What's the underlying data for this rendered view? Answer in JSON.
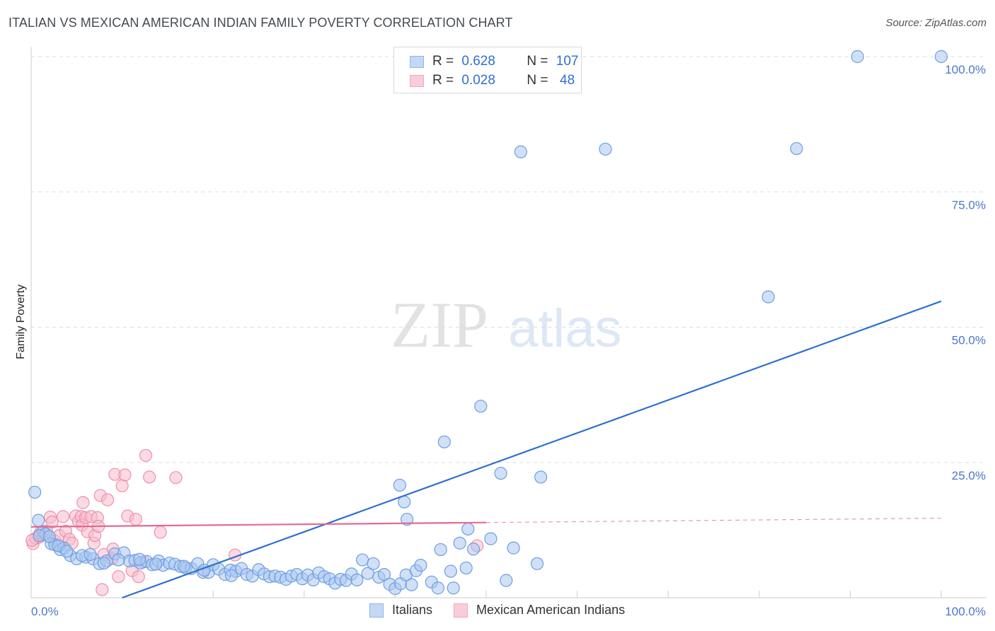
{
  "header": {
    "title": "ITALIAN VS MEXICAN AMERICAN INDIAN FAMILY POVERTY CORRELATION CHART",
    "source": "Source: ZipAtlas.com"
  },
  "watermark": {
    "zip": "ZIP",
    "atlas": "atlas"
  },
  "legend": {
    "rows": [
      {
        "r_label": "R = ",
        "r_value": "0.628",
        "n_label": "N = ",
        "n_value": "107",
        "color": "#8fb4ee"
      },
      {
        "r_label": "R = ",
        "r_value": "0.028",
        "n_label": "N = ",
        "n_value": " 48",
        "color": "#f3a6be"
      }
    ]
  },
  "colors": {
    "italians_fill": "#a9c6f0",
    "italians_stroke": "#6e9ee0",
    "italians_line": "#2c6fd0",
    "mexican_fill": "#f7bccc",
    "mexican_stroke": "#ee8fab",
    "mexican_line": "#e46a93",
    "tick": "#4a78c8",
    "grid": "#dddddd"
  },
  "chart_data": {
    "type": "scatter",
    "title": "ITALIAN VS MEXICAN AMERICAN INDIAN FAMILY POVERTY CORRELATION CHART",
    "xlabel": "",
    "ylabel": "Family Poverty",
    "xlim": [
      0,
      100
    ],
    "ylim": [
      0,
      100
    ],
    "x_tick_labels": [
      "0.0%",
      "100.0%"
    ],
    "y_ticks": [
      {
        "value": 25,
        "label": "25.0%"
      },
      {
        "value": 50,
        "label": "50.0%"
      },
      {
        "value": 75,
        "label": "75.0%"
      },
      {
        "value": 100,
        "label": "100.0%"
      }
    ],
    "grid": true,
    "legend_position": "bottom",
    "series": [
      {
        "name": "Italians",
        "color": "#8fb4ee",
        "trend": {
          "x": [
            10,
            100
          ],
          "y": [
            0,
            54.8
          ]
        },
        "points": [
          [
            0.4,
            19.5
          ],
          [
            0.8,
            14.3
          ],
          [
            1.3,
            12.2
          ],
          [
            1.6,
            11.8
          ],
          [
            2.2,
            10.0
          ],
          [
            2.6,
            9.8
          ],
          [
            3.2,
            8.9
          ],
          [
            3.6,
            9.2
          ],
          [
            4.3,
            7.8
          ],
          [
            5.0,
            7.2
          ],
          [
            6.0,
            7.5
          ],
          [
            6.8,
            7.2
          ],
          [
            7.5,
            6.3
          ],
          [
            8.3,
            6.8
          ],
          [
            9.2,
            8.1
          ],
          [
            10.2,
            8.3
          ],
          [
            10.8,
            6.8
          ],
          [
            11.4,
            6.9
          ],
          [
            12.0,
            6.4
          ],
          [
            12.7,
            6.7
          ],
          [
            13.3,
            6.1
          ],
          [
            14.0,
            6.8
          ],
          [
            14.5,
            6.0
          ],
          [
            15.2,
            6.4
          ],
          [
            15.8,
            6.2
          ],
          [
            16.4,
            5.8
          ],
          [
            17.0,
            5.5
          ],
          [
            17.6,
            5.4
          ],
          [
            18.3,
            6.3
          ],
          [
            18.9,
            4.7
          ],
          [
            19.5,
            4.7
          ],
          [
            20.0,
            6.1
          ],
          [
            20.6,
            5.3
          ],
          [
            21.3,
            4.3
          ],
          [
            21.9,
            5.1
          ],
          [
            22.5,
            4.9
          ],
          [
            23.1,
            5.4
          ],
          [
            23.7,
            4.3
          ],
          [
            24.3,
            4.0
          ],
          [
            25.0,
            5.2
          ],
          [
            25.6,
            4.4
          ],
          [
            26.2,
            3.9
          ],
          [
            26.8,
            4.0
          ],
          [
            27.4,
            3.8
          ],
          [
            28.0,
            3.4
          ],
          [
            28.6,
            4.0
          ],
          [
            29.2,
            4.3
          ],
          [
            29.8,
            3.5
          ],
          [
            30.4,
            4.2
          ],
          [
            31.0,
            3.3
          ],
          [
            31.6,
            4.6
          ],
          [
            32.2,
            3.9
          ],
          [
            32.8,
            3.5
          ],
          [
            33.4,
            2.7
          ],
          [
            34.0,
            3.4
          ],
          [
            34.6,
            3.2
          ],
          [
            35.2,
            4.4
          ],
          [
            35.8,
            3.3
          ],
          [
            36.4,
            7.0
          ],
          [
            37.0,
            4.5
          ],
          [
            37.6,
            6.3
          ],
          [
            38.2,
            3.8
          ],
          [
            38.8,
            4.3
          ],
          [
            39.4,
            2.5
          ],
          [
            40.0,
            1.7
          ],
          [
            40.6,
            2.6
          ],
          [
            41.2,
            4.2
          ],
          [
            41.8,
            2.4
          ],
          [
            42.3,
            5.0
          ],
          [
            42.8,
            6.0
          ],
          [
            44.0,
            2.9
          ],
          [
            44.7,
            1.8
          ],
          [
            45.0,
            8.9
          ],
          [
            46.1,
            4.9
          ],
          [
            46.4,
            1.8
          ],
          [
            47.1,
            10.1
          ],
          [
            47.8,
            5.5
          ],
          [
            48.0,
            12.7
          ],
          [
            48.6,
            9.0
          ],
          [
            50.5,
            10.9
          ],
          [
            53.0,
            9.2
          ],
          [
            55.6,
            6.3
          ],
          [
            52.2,
            3.2
          ],
          [
            40.5,
            20.8
          ],
          [
            41.0,
            17.7
          ],
          [
            41.3,
            14.5
          ],
          [
            45.4,
            28.8
          ],
          [
            49.4,
            35.4
          ],
          [
            51.6,
            23.0
          ],
          [
            56.0,
            22.3
          ],
          [
            53.8,
            82.4
          ],
          [
            63.1,
            82.9
          ],
          [
            84.1,
            83.0
          ],
          [
            81.0,
            55.6
          ],
          [
            90.8,
            100.0
          ],
          [
            100.0,
            100.0
          ],
          [
            0.9,
            11.5
          ],
          [
            2.0,
            11.3
          ],
          [
            3.0,
            9.6
          ],
          [
            3.9,
            8.6
          ],
          [
            5.6,
            7.8
          ],
          [
            6.5,
            8.0
          ],
          [
            8.0,
            6.4
          ],
          [
            9.6,
            7.0
          ],
          [
            11.9,
            7.1
          ],
          [
            13.7,
            6.2
          ],
          [
            16.8,
            5.8
          ],
          [
            19.0,
            5.1
          ],
          [
            22.0,
            4.1
          ]
        ]
      },
      {
        "name": "Mexican American Indians",
        "color": "#f3a6be",
        "trend": {
          "x": [
            0,
            50
          ],
          "y": [
            13.1,
            13.9
          ]
        },
        "trend_extension": {
          "x": [
            50,
            100
          ],
          "y": [
            13.9,
            14.7
          ]
        },
        "points": [
          [
            0.2,
            10.0
          ],
          [
            0.5,
            11.0
          ],
          [
            0.9,
            11.2
          ],
          [
            1.3,
            11.6
          ],
          [
            1.7,
            12.3
          ],
          [
            2.1,
            14.9
          ],
          [
            2.3,
            14.0
          ],
          [
            2.6,
            10.5
          ],
          [
            3.1,
            11.5
          ],
          [
            3.5,
            15.0
          ],
          [
            3.8,
            12.3
          ],
          [
            4.2,
            10.8
          ],
          [
            4.5,
            10.1
          ],
          [
            4.9,
            15.1
          ],
          [
            5.2,
            14.1
          ],
          [
            5.5,
            15.0
          ],
          [
            5.6,
            13.4
          ],
          [
            5.7,
            17.6
          ],
          [
            6.0,
            14.8
          ],
          [
            6.2,
            12.2
          ],
          [
            6.6,
            15.0
          ],
          [
            6.9,
            10.1
          ],
          [
            7.0,
            11.5
          ],
          [
            7.3,
            14.8
          ],
          [
            7.4,
            13.2
          ],
          [
            7.6,
            18.9
          ],
          [
            7.8,
            1.5
          ],
          [
            8.0,
            8.0
          ],
          [
            8.4,
            18.1
          ],
          [
            8.9,
            7.2
          ],
          [
            9.0,
            9.0
          ],
          [
            9.2,
            22.8
          ],
          [
            9.6,
            3.9
          ],
          [
            10.0,
            20.7
          ],
          [
            10.3,
            22.7
          ],
          [
            10.6,
            15.1
          ],
          [
            11.1,
            5.0
          ],
          [
            11.5,
            14.5
          ],
          [
            11.8,
            3.9
          ],
          [
            12.3,
            6.6
          ],
          [
            12.6,
            26.3
          ],
          [
            13.0,
            22.3
          ],
          [
            14.2,
            12.1
          ],
          [
            15.9,
            22.2
          ],
          [
            22.4,
            7.9
          ],
          [
            49.0,
            9.6
          ],
          [
            0.1,
            10.6
          ],
          [
            1.0,
            12.0
          ]
        ]
      }
    ]
  },
  "bottom_legend": [
    {
      "label": "Italians"
    },
    {
      "label": "Mexican American Indians"
    }
  ]
}
